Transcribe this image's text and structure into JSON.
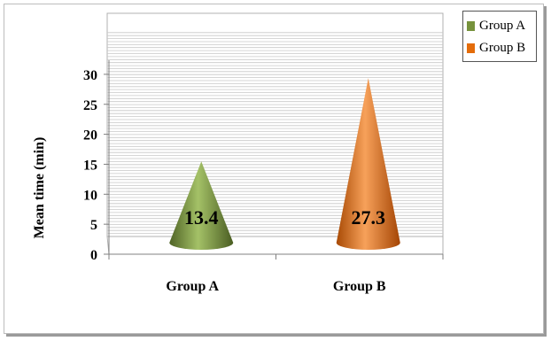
{
  "chart_data": {
    "type": "bar",
    "bar_shape": "cone",
    "categories": [
      "Group A",
      "Group B"
    ],
    "values": [
      13.4,
      27.3
    ],
    "series": [
      {
        "name": "Group A",
        "color": "#76923c"
      },
      {
        "name": "Group B",
        "color": "#e46c0a"
      }
    ],
    "data_labels": [
      "13.4",
      "27.3"
    ],
    "ylabel": "Mean time (min)",
    "xlabel": "",
    "ylim": [
      0,
      30
    ],
    "yticks": [
      "0",
      "5",
      "10",
      "15",
      "20",
      "25",
      "30"
    ],
    "ytick_values": [
      0,
      5,
      10,
      15,
      20,
      25,
      30
    ],
    "grid": true,
    "legend": "top-right"
  }
}
